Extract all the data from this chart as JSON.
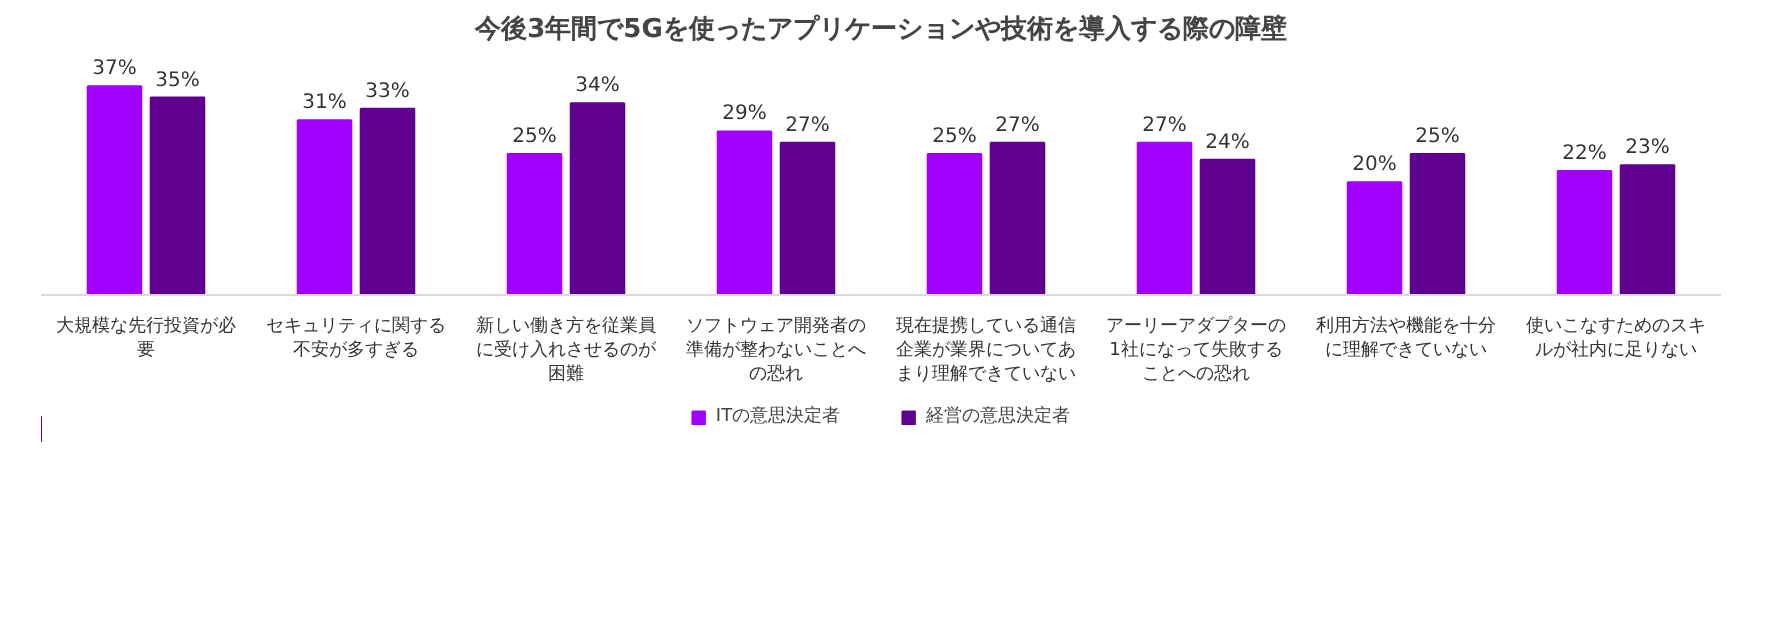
{
  "chart_data": {
    "type": "bar",
    "title": "今後3年間で5Gを使ったアプリケーションや技術を導入する際の障壁",
    "categories": [
      "大規模な先行投資が必要",
      "セキュリティに関する不安が多すぎる",
      "新しい働き方を従業員に受け入れさせるのが困難",
      "ソフトウェア開発者の準備が整わないことへの恐れ",
      "現在提携している通信企業が業界についてあまり理解できていない",
      "アーリーアダプターの1社になって失敗することへの恐れ",
      "利用方法や機能を十分に理解できていない",
      "使いこなすためのスキルが社内に足りない"
    ],
    "series": [
      {
        "name": "ITの意思決定者",
        "color": "#a100ff",
        "values": [
          37,
          31,
          25,
          29,
          25,
          27,
          20,
          22
        ],
        "value_labels": [
          "37%",
          "31%",
          "25%",
          "29%",
          "25%",
          "27%",
          "20%",
          "22%"
        ]
      },
      {
        "name": "経営の意思決定者",
        "color": "#5f0090",
        "values": [
          35,
          33,
          34,
          27,
          27,
          24,
          25,
          23
        ],
        "value_labels": [
          "35%",
          "33%",
          "34%",
          "27%",
          "27%",
          "24%",
          "25%",
          "23%"
        ]
      }
    ],
    "legend": "bottom"
  }
}
